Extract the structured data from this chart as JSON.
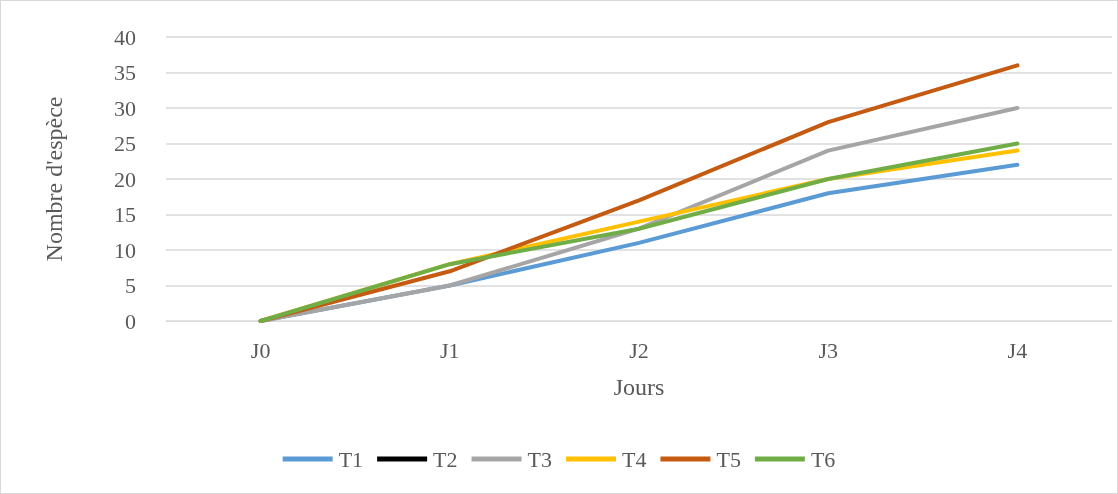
{
  "chart_data": {
    "type": "line",
    "xlabel": "Jours",
    "ylabel": "Nombre d'espèce",
    "categories": [
      "J0",
      "J1",
      "J2",
      "J3",
      "J4"
    ],
    "series": [
      {
        "name": "T1",
        "color": "#5b9bd5",
        "values": [
          0,
          5,
          11,
          18,
          22
        ]
      },
      {
        "name": "T2",
        "color": "#000000",
        "values": [
          null,
          null,
          null,
          null,
          null
        ]
      },
      {
        "name": "T3",
        "color": "#a5a5a5",
        "values": [
          0,
          5,
          13,
          24,
          30
        ]
      },
      {
        "name": "T4",
        "color": "#ffc000",
        "values": [
          0,
          8,
          14,
          20,
          24
        ]
      },
      {
        "name": "T5",
        "color": "#c55a11",
        "values": [
          0,
          7,
          17,
          28,
          36
        ]
      },
      {
        "name": "T6",
        "color": "#70ad47",
        "values": [
          0,
          8,
          13,
          20,
          25
        ]
      }
    ],
    "ylim": [
      0,
      40
    ],
    "yticks": [
      0,
      5,
      10,
      15,
      20,
      25,
      30,
      35,
      40
    ],
    "grid": "y",
    "legend": "bottom",
    "marker": "none",
    "line_style": "solid"
  }
}
